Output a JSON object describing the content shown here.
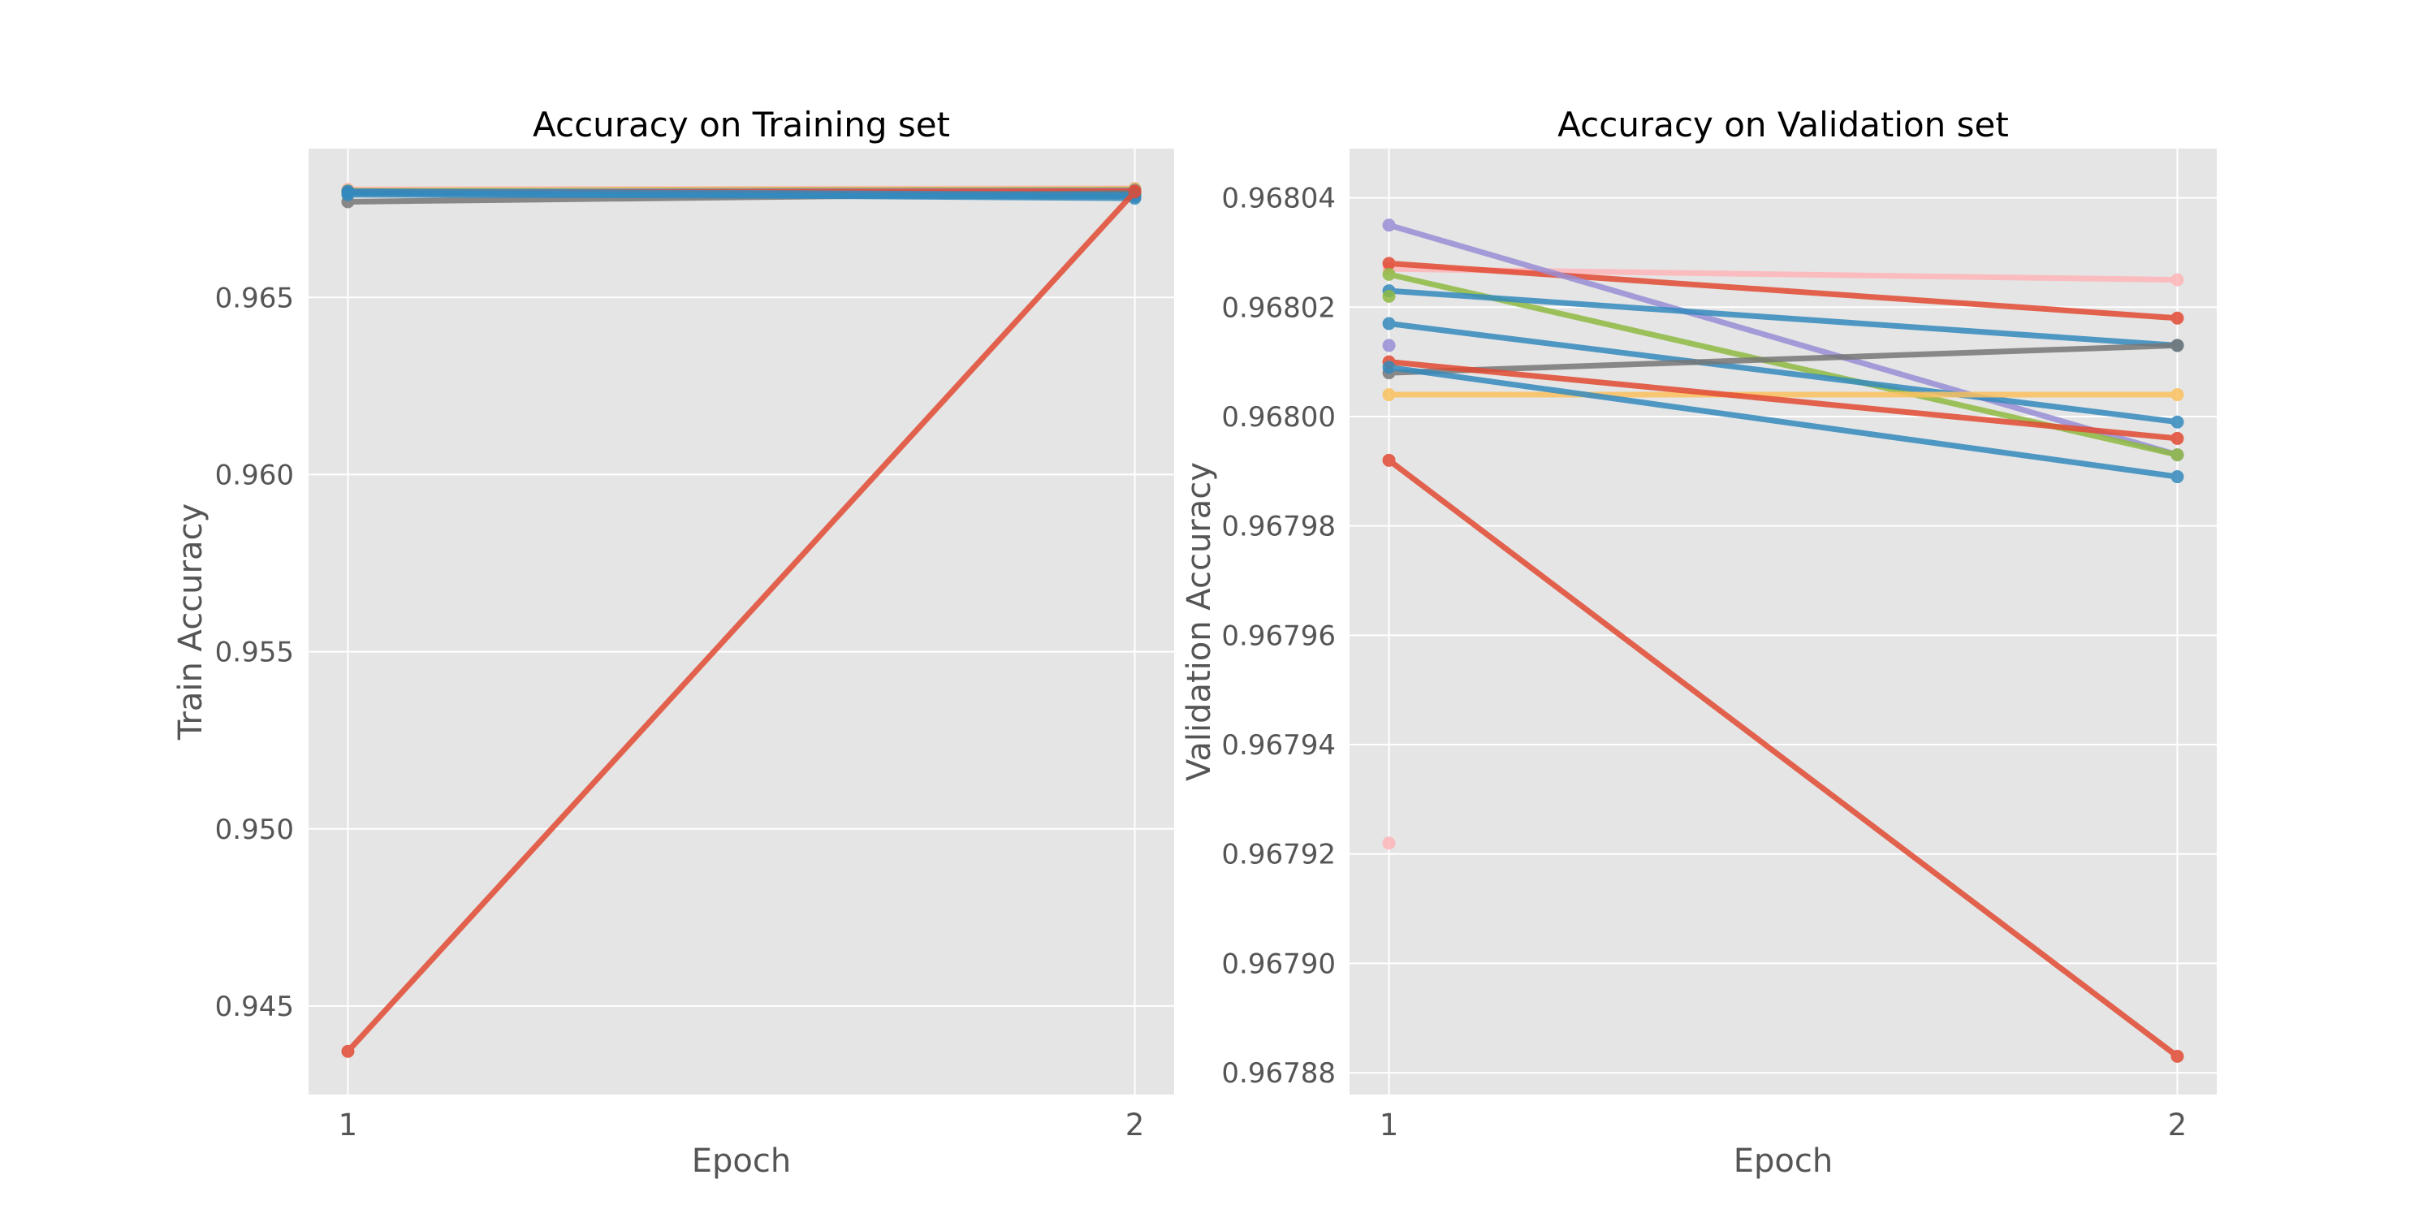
{
  "chart_data": [
    {
      "type": "line",
      "title": "Accuracy on Training set",
      "xlabel": "Epoch",
      "ylabel": "Train Accuracy",
      "x": [
        1,
        2
      ],
      "xlim": [
        0.95,
        2.05
      ],
      "ylim": [
        0.9425,
        0.9692
      ],
      "grid": true,
      "x_ticks": [
        1,
        2
      ],
      "x_tick_labels": [
        "1",
        "2"
      ],
      "y_ticks": [
        0.945,
        0.95,
        0.955,
        0.96,
        0.965
      ],
      "y_tick_labels": [
        "0.945",
        "0.950",
        "0.955",
        "0.960",
        "0.965"
      ],
      "series": [
        {
          "color": "#FFB5B8",
          "values": [
            0.96805,
            0.96808
          ]
        },
        {
          "color": "#FBC15E",
          "values": [
            0.96802,
            0.96806
          ]
        },
        {
          "color": "#8EBA42",
          "values": [
            0.968,
            0.96804
          ]
        },
        {
          "color": "#988ED5",
          "values": [
            0.96798,
            0.96802
          ]
        },
        {
          "color": "#E24A33",
          "values": [
            0.96796,
            0.968
          ]
        },
        {
          "color": "#777777",
          "values": [
            0.9677,
            0.96795
          ]
        },
        {
          "color": "#348ABD",
          "values": [
            0.9679,
            0.96785
          ]
        },
        {
          "color": "#348ABD",
          "values": [
            0.968,
            0.9679
          ]
        },
        {
          "color": "#348ABD",
          "values": [
            0.96795,
            0.9678
          ]
        },
        {
          "color": "#E24A33",
          "values": [
            0.94372,
            0.96798
          ]
        }
      ]
    },
    {
      "type": "line",
      "title": "Accuracy on Validation set",
      "xlabel": "Epoch",
      "ylabel": "Validation Accuracy",
      "x": [
        1,
        2
      ],
      "xlim": [
        0.95,
        2.05
      ],
      "ylim": [
        0.967876,
        0.968049
      ],
      "grid": true,
      "x_ticks": [
        1,
        2
      ],
      "x_tick_labels": [
        "1",
        "2"
      ],
      "y_ticks": [
        0.96788,
        0.9679,
        0.96792,
        0.96794,
        0.96796,
        0.96798,
        0.968,
        0.96802,
        0.96804
      ],
      "y_tick_labels": [
        "0.96788",
        "0.96790",
        "0.96792",
        "0.96794",
        "0.96796",
        "0.96798",
        "0.96800",
        "0.96802",
        "0.96804"
      ],
      "series": [
        {
          "color": "#FFB5B8",
          "values": [
            0.968027,
            0.968025
          ]
        },
        {
          "color": "#E24A33",
          "values": [
            0.968028,
            0.968018
          ]
        },
        {
          "color": "#988ED5",
          "values": [
            0.968035,
            0.967993
          ]
        },
        {
          "color": "#8EBA42",
          "values": [
            0.968026,
            0.967993
          ]
        },
        {
          "color": "#348ABD",
          "values": [
            0.968023,
            0.968013
          ]
        },
        {
          "color": "#348ABD",
          "values": [
            0.968017,
            0.967999
          ]
        },
        {
          "color": "#777777",
          "values": [
            0.968008,
            0.968013
          ]
        },
        {
          "color": "#FBC15E",
          "values": [
            0.968004,
            0.968004
          ]
        },
        {
          "color": "#E24A33",
          "values": [
            0.96801,
            0.967996
          ]
        },
        {
          "color": "#348ABD",
          "values": [
            0.968009,
            0.967989
          ]
        },
        {
          "color": "#E24A33",
          "values": [
            0.967992,
            0.967883
          ]
        }
      ],
      "extra_points": [
        {
          "color": "#8EBA42",
          "x": 1,
          "y": 0.968022
        },
        {
          "color": "#988ED5",
          "x": 1,
          "y": 0.968013
        },
        {
          "color": "#FFB5B8",
          "x": 1,
          "y": 0.967922
        }
      ]
    }
  ]
}
